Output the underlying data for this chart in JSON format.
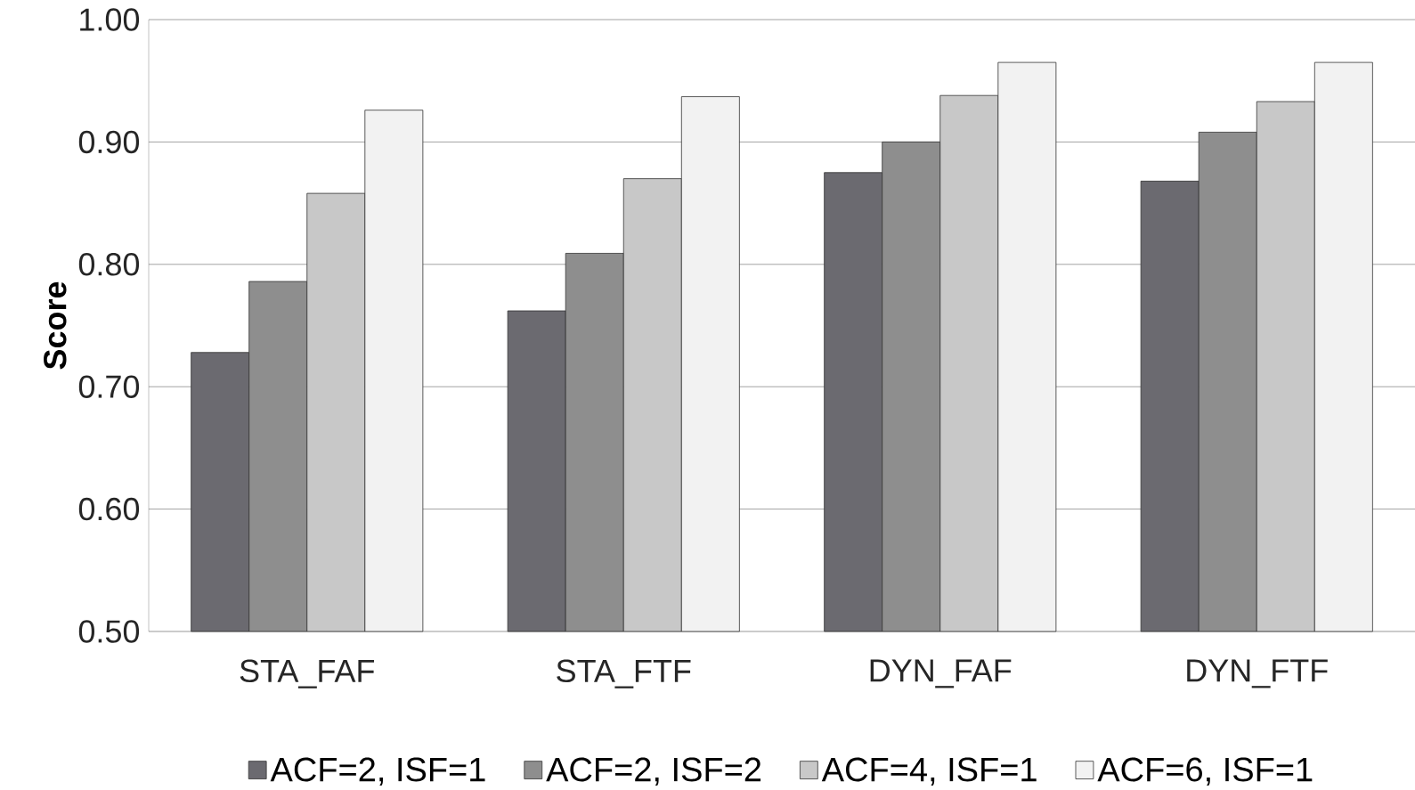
{
  "chart_data": {
    "type": "bar",
    "ylabel": "Score",
    "categories": [
      "STA_FAF",
      "STA_FTF",
      "DYN_FAF",
      "DYN_FTF"
    ],
    "series": [
      {
        "name": "ACF=2, ISF=1",
        "color": "#6b6a70",
        "values": [
          0.728,
          0.762,
          0.875,
          0.868
        ]
      },
      {
        "name": "ACF=2, ISF=2",
        "color": "#8e8e8e",
        "values": [
          0.786,
          0.809,
          0.9,
          0.908
        ]
      },
      {
        "name": "ACF=4, ISF=1",
        "color": "#c8c8c8",
        "values": [
          0.858,
          0.87,
          0.938,
          0.933
        ]
      },
      {
        "name": "ACF=6, ISF=1",
        "color": "#f2f2f2",
        "values": [
          0.926,
          0.937,
          0.965,
          0.965
        ]
      }
    ],
    "ylim": [
      0.5,
      1.0
    ],
    "yticks": [
      {
        "value": 0.5,
        "label": "0.50"
      },
      {
        "value": 0.6,
        "label": "0.60"
      },
      {
        "value": 0.7,
        "label": "0.70"
      },
      {
        "value": 0.8,
        "label": "0.80"
      },
      {
        "value": 0.9,
        "label": "0.90"
      },
      {
        "value": 1.0,
        "label": "1.00"
      }
    ],
    "grid": "y",
    "legend": "bottom"
  }
}
